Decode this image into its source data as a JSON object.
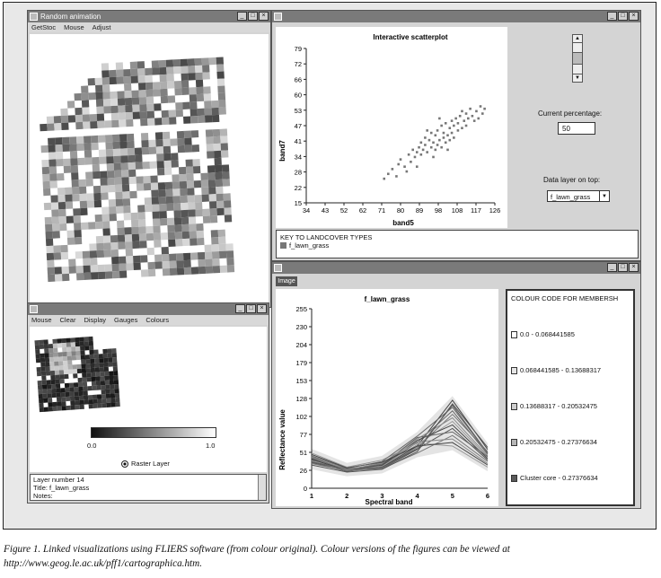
{
  "anim_window": {
    "title": "Random animation",
    "menu": [
      "GetStoc",
      "Mouse",
      "Adjust"
    ]
  },
  "scatter_window": {
    "plot_title": "Interactive scatterplot",
    "current_percentage_label": "Current percentage:",
    "current_percentage_value": "50",
    "data_layer_label": "Data layer on top:",
    "data_layer_value": "f_lawn_grass",
    "key_title": "KEY TO LANDCOVER TYPES",
    "key_item": "f_lawn_grass"
  },
  "raster_window": {
    "menu": [
      "Mouse",
      "Clear",
      "Display",
      "Gauges",
      "Colours"
    ],
    "scale_min": "0.0",
    "scale_max": "1.0",
    "raster_layer_label": "Raster Layer",
    "info_lines": [
      "Layer number 14",
      "Title: f_lawn_grass",
      "Notes:"
    ]
  },
  "profile_window": {
    "tab_label": "Image",
    "legend_title": "COLOUR CODE FOR MEMBERSH",
    "legend_items": [
      {
        "label": "0.0 - 0.068441585",
        "color": "#ffffff"
      },
      {
        "label": "0.068441585 - 0.13688317",
        "color": "#e6e6e6"
      },
      {
        "label": "0.13688317 - 0.20532475",
        "color": "#cfcfcf"
      },
      {
        "label": "0.20532475 - 0.27376634",
        "color": "#b6b6b6"
      },
      {
        "label": "Cluster core - 0.27376634",
        "color": "#5a5a5a"
      }
    ]
  },
  "caption": {
    "line1": "Figure 1. Linked visualizations using FLIERS software (from colour original). Colour versions of the figures can be viewed at",
    "line2": "http://www.geog.le.ac.uk/pff1/cartographica.htm."
  },
  "chart_data": [
    {
      "type": "scatter",
      "title": "Interactive scatterplot",
      "xlabel": "band5",
      "ylabel": "band7",
      "xlim": [
        34,
        126
      ],
      "ylim": [
        15,
        79
      ],
      "xticks": [
        "34",
        "43",
        "52",
        "62",
        "71",
        "80",
        "89",
        "98",
        "108",
        "117",
        "126"
      ],
      "yticks": [
        "15",
        "22",
        "28",
        "34",
        "41",
        "47",
        "53",
        "60",
        "66",
        "72",
        "79"
      ],
      "points": [
        [
          72,
          25
        ],
        [
          74,
          27
        ],
        [
          76,
          29
        ],
        [
          78,
          26
        ],
        [
          79,
          31
        ],
        [
          80,
          33
        ],
        [
          82,
          30
        ],
        [
          84,
          35
        ],
        [
          85,
          32
        ],
        [
          86,
          37
        ],
        [
          87,
          34
        ],
        [
          88,
          36
        ],
        [
          89,
          38
        ],
        [
          90,
          35
        ],
        [
          90,
          40
        ],
        [
          91,
          37
        ],
        [
          92,
          39
        ],
        [
          92,
          42
        ],
        [
          93,
          36
        ],
        [
          94,
          41
        ],
        [
          95,
          38
        ],
        [
          95,
          44
        ],
        [
          96,
          40
        ],
        [
          97,
          37
        ],
        [
          97,
          43
        ],
        [
          98,
          39
        ],
        [
          98,
          45
        ],
        [
          99,
          41
        ],
        [
          100,
          38
        ],
        [
          100,
          47
        ],
        [
          101,
          42
        ],
        [
          101,
          44
        ],
        [
          102,
          40
        ],
        [
          102,
          48
        ],
        [
          103,
          43
        ],
        [
          104,
          46
        ],
        [
          104,
          41
        ],
        [
          105,
          49
        ],
        [
          105,
          44
        ],
        [
          106,
          47
        ],
        [
          106,
          42
        ],
        [
          107,
          50
        ],
        [
          108,
          45
        ],
        [
          108,
          48
        ],
        [
          109,
          51
        ],
        [
          110,
          46
        ],
        [
          110,
          53
        ],
        [
          111,
          49
        ],
        [
          112,
          52
        ],
        [
          112,
          47
        ],
        [
          113,
          50
        ],
        [
          114,
          54
        ],
        [
          115,
          51
        ],
        [
          116,
          49
        ],
        [
          117,
          53
        ],
        [
          118,
          50
        ],
        [
          119,
          55
        ],
        [
          120,
          52
        ],
        [
          121,
          54
        ],
        [
          88,
          30
        ],
        [
          83,
          28
        ],
        [
          93,
          45
        ],
        [
          96,
          34
        ],
        [
          103,
          37
        ],
        [
          99,
          50
        ]
      ]
    },
    {
      "type": "line",
      "title": "f_lawn_grass",
      "xlabel": "Spectral band",
      "ylabel": "Reflectance value",
      "xlim": [
        1,
        6
      ],
      "ylim": [
        0,
        255
      ],
      "x": [
        1,
        2,
        3,
        4,
        5,
        6
      ],
      "yticks": [
        "0",
        "26",
        "51",
        "77",
        "102",
        "128",
        "153",
        "179",
        "204",
        "230",
        "255"
      ],
      "series": [
        {
          "values": [
            40,
            25,
            30,
            60,
            125,
            55
          ]
        },
        {
          "values": [
            38,
            26,
            28,
            55,
            118,
            50
          ]
        },
        {
          "values": [
            42,
            24,
            32,
            65,
            110,
            48
          ]
        },
        {
          "values": [
            36,
            27,
            29,
            58,
            105,
            52
          ]
        },
        {
          "values": [
            44,
            25,
            35,
            70,
            100,
            46
          ]
        },
        {
          "values": [
            39,
            28,
            31,
            62,
            95,
            44
          ]
        },
        {
          "values": [
            41,
            26,
            33,
            68,
            90,
            42
          ]
        },
        {
          "values": [
            37,
            24,
            30,
            56,
            85,
            40
          ]
        },
        {
          "values": [
            43,
            27,
            34,
            72,
            80,
            45
          ]
        },
        {
          "values": [
            35,
            25,
            28,
            50,
            75,
            38
          ]
        },
        {
          "values": [
            45,
            26,
            36,
            66,
            70,
            35
          ]
        },
        {
          "values": [
            50,
            30,
            40,
            64,
            60,
            30
          ]
        },
        {
          "values": [
            48,
            29,
            37,
            60,
            65,
            33
          ]
        },
        {
          "values": [
            33,
            23,
            27,
            52,
            120,
            58
          ]
        },
        {
          "values": [
            46,
            28,
            38,
            74,
            115,
            50
          ]
        }
      ]
    }
  ]
}
